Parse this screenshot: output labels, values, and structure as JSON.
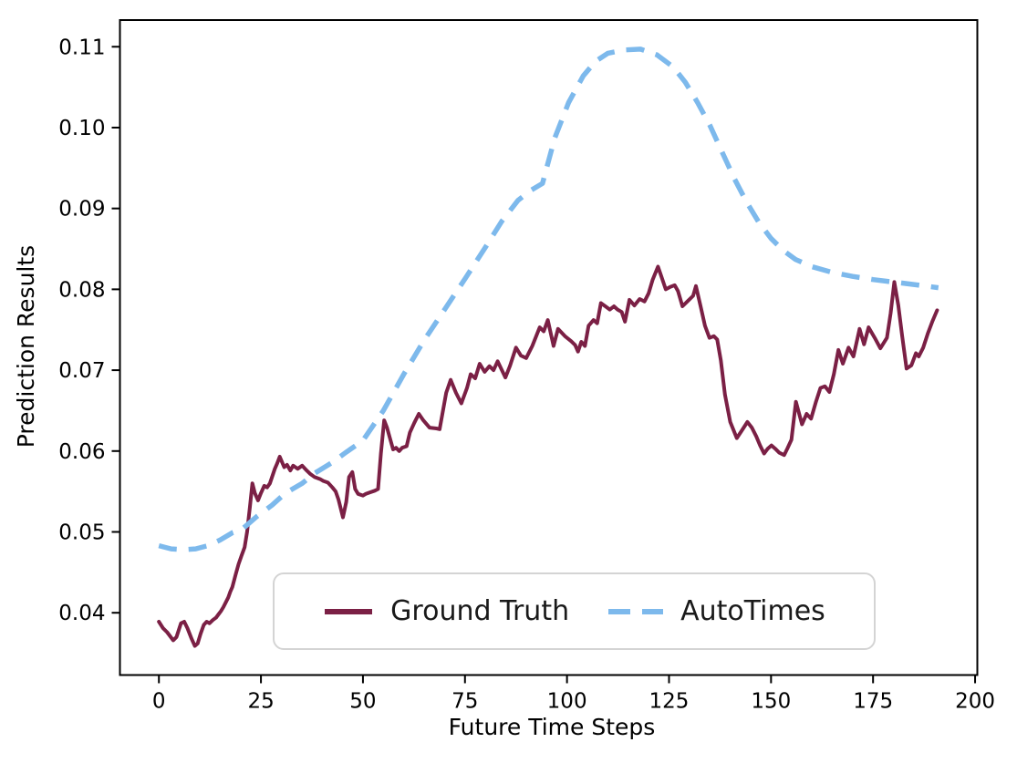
{
  "chart_data": {
    "type": "line",
    "title": "",
    "xlabel": "Future Time Steps",
    "ylabel": "Prediction Results",
    "xlim": [
      -9.55,
      200.55
    ],
    "ylim": [
      0.0323,
      0.1133
    ],
    "grid": false,
    "legend_position": "lower center",
    "x_ticks": [
      {
        "v": 0,
        "label": "0"
      },
      {
        "v": 25,
        "label": "25"
      },
      {
        "v": 50,
        "label": "50"
      },
      {
        "v": 75,
        "label": "75"
      },
      {
        "v": 100,
        "label": "100"
      },
      {
        "v": 125,
        "label": "125"
      },
      {
        "v": 150,
        "label": "150"
      },
      {
        "v": 175,
        "label": "175"
      },
      {
        "v": 200,
        "label": "200"
      }
    ],
    "y_ticks": [
      {
        "v": 0.04,
        "label": "0.04"
      },
      {
        "v": 0.05,
        "label": "0.05"
      },
      {
        "v": 0.06,
        "label": "0.06"
      },
      {
        "v": 0.07,
        "label": "0.07"
      },
      {
        "v": 0.08,
        "label": "0.08"
      },
      {
        "v": 0.09,
        "label": "0.09"
      },
      {
        "v": 0.1,
        "label": "0.10"
      },
      {
        "v": 0.11,
        "label": "0.11"
      }
    ],
    "series": [
      {
        "name": "Ground Truth",
        "color": "#7b2045",
        "line_style": "solid",
        "points": [
          [
            0,
            0.0389
          ],
          [
            1,
            0.0381
          ],
          [
            2,
            0.0376
          ],
          [
            3.5,
            0.0366
          ],
          [
            4.3,
            0.037
          ],
          [
            5.4,
            0.0387
          ],
          [
            6.2,
            0.0389
          ],
          [
            7,
            0.0381
          ],
          [
            8,
            0.0368
          ],
          [
            8.8,
            0.0359
          ],
          [
            9.5,
            0.0362
          ],
          [
            10.2,
            0.0374
          ],
          [
            11,
            0.0385
          ],
          [
            11.7,
            0.0389
          ],
          [
            12.4,
            0.0387
          ],
          [
            13.2,
            0.0391
          ],
          [
            14,
            0.0394
          ],
          [
            14.6,
            0.0398
          ],
          [
            15.2,
            0.0402
          ],
          [
            15.8,
            0.0407
          ],
          [
            16.4,
            0.0413
          ],
          [
            17,
            0.0419
          ],
          [
            17.5,
            0.0426
          ],
          [
            18,
            0.0432
          ],
          [
            18.8,
            0.0447
          ],
          [
            19.5,
            0.046
          ],
          [
            20.2,
            0.047
          ],
          [
            21,
            0.0481
          ],
          [
            21.6,
            0.05
          ],
          [
            22.3,
            0.0531
          ],
          [
            22.9,
            0.056
          ],
          [
            23.5,
            0.0548
          ],
          [
            24.3,
            0.0539
          ],
          [
            25,
            0.0548
          ],
          [
            25.8,
            0.0557
          ],
          [
            26.5,
            0.0555
          ],
          [
            27.2,
            0.056
          ],
          [
            28.4,
            0.0578
          ],
          [
            29,
            0.0585
          ],
          [
            29.6,
            0.0593
          ],
          [
            30.7,
            0.058
          ],
          [
            31.4,
            0.0583
          ],
          [
            32.2,
            0.0576
          ],
          [
            32.9,
            0.0582
          ],
          [
            34,
            0.0578
          ],
          [
            35.1,
            0.0582
          ],
          [
            36.2,
            0.0576
          ],
          [
            37,
            0.0572
          ],
          [
            38.1,
            0.0568
          ],
          [
            39.6,
            0.0565
          ],
          [
            40.3,
            0.0563
          ],
          [
            41.4,
            0.0561
          ],
          [
            42.5,
            0.0555
          ],
          [
            43.3,
            0.055
          ],
          [
            44,
            0.054
          ],
          [
            45.1,
            0.0518
          ],
          [
            45.9,
            0.0537
          ],
          [
            46.6,
            0.0568
          ],
          [
            47.4,
            0.0574
          ],
          [
            48.1,
            0.0553
          ],
          [
            48.8,
            0.0547
          ],
          [
            50,
            0.0545
          ],
          [
            50.7,
            0.0547
          ],
          [
            51.8,
            0.0549
          ],
          [
            52.9,
            0.0551
          ],
          [
            53.7,
            0.0553
          ],
          [
            54.4,
            0.0597
          ],
          [
            55.2,
            0.0638
          ],
          [
            55.9,
            0.0629
          ],
          [
            56.6,
            0.0616
          ],
          [
            57.4,
            0.0602
          ],
          [
            58.1,
            0.0604
          ],
          [
            58.9,
            0.06
          ],
          [
            59.6,
            0.0604
          ],
          [
            60.7,
            0.0606
          ],
          [
            61.5,
            0.0623
          ],
          [
            62.6,
            0.0635
          ],
          [
            63.7,
            0.0646
          ],
          [
            64.8,
            0.0638
          ],
          [
            66.3,
            0.0629
          ],
          [
            68,
            0.0628
          ],
          [
            68.8,
            0.0627
          ],
          [
            70.4,
            0.0672
          ],
          [
            71.5,
            0.0688
          ],
          [
            72.8,
            0.0672
          ],
          [
            74.1,
            0.0659
          ],
          [
            75.5,
            0.0678
          ],
          [
            76.4,
            0.0695
          ],
          [
            77.5,
            0.069
          ],
          [
            78.6,
            0.0708
          ],
          [
            79.8,
            0.0698
          ],
          [
            81,
            0.0705
          ],
          [
            82,
            0.07
          ],
          [
            83,
            0.0711
          ],
          [
            84.9,
            0.0691
          ],
          [
            86,
            0.0705
          ],
          [
            87.5,
            0.0728
          ],
          [
            88.7,
            0.0718
          ],
          [
            90,
            0.0715
          ],
          [
            91.5,
            0.073
          ],
          [
            93.3,
            0.0753
          ],
          [
            94.3,
            0.0748
          ],
          [
            95.3,
            0.0762
          ],
          [
            96.7,
            0.073
          ],
          [
            97.8,
            0.0751
          ],
          [
            99.5,
            0.0742
          ],
          [
            101,
            0.0736
          ],
          [
            102,
            0.0731
          ],
          [
            102.7,
            0.0723
          ],
          [
            103.5,
            0.0735
          ],
          [
            104.4,
            0.073
          ],
          [
            105.3,
            0.0755
          ],
          [
            106.5,
            0.0762
          ],
          [
            107.4,
            0.0758
          ],
          [
            108.3,
            0.0783
          ],
          [
            109.4,
            0.0779
          ],
          [
            110.5,
            0.0775
          ],
          [
            111.5,
            0.0779
          ],
          [
            112.4,
            0.0775
          ],
          [
            113.4,
            0.0772
          ],
          [
            114.2,
            0.076
          ],
          [
            115.3,
            0.0787
          ],
          [
            116.5,
            0.078
          ],
          [
            117.8,
            0.0788
          ],
          [
            119,
            0.0785
          ],
          [
            120,
            0.0795
          ],
          [
            121,
            0.0812
          ],
          [
            122.3,
            0.0828
          ],
          [
            123.2,
            0.0815
          ],
          [
            124.2,
            0.08
          ],
          [
            125.3,
            0.0803
          ],
          [
            126.4,
            0.0805
          ],
          [
            127.2,
            0.0798
          ],
          [
            128.3,
            0.0779
          ],
          [
            129.5,
            0.0785
          ],
          [
            130.9,
            0.0792
          ],
          [
            131.6,
            0.0804
          ],
          [
            132.7,
            0.078
          ],
          [
            133.8,
            0.0755
          ],
          [
            134.9,
            0.074
          ],
          [
            136,
            0.0742
          ],
          [
            136.8,
            0.0738
          ],
          [
            137.7,
            0.0712
          ],
          [
            138.7,
            0.067
          ],
          [
            140,
            0.0636
          ],
          [
            141.6,
            0.0616
          ],
          [
            142.8,
            0.0625
          ],
          [
            144.2,
            0.0636
          ],
          [
            145.3,
            0.0629
          ],
          [
            146.4,
            0.0618
          ],
          [
            147.3,
            0.0607
          ],
          [
            148.3,
            0.0597
          ],
          [
            149.2,
            0.0603
          ],
          [
            150.1,
            0.0607
          ],
          [
            151,
            0.0603
          ],
          [
            152,
            0.0598
          ],
          [
            153.2,
            0.0595
          ],
          [
            154,
            0.0603
          ],
          [
            155,
            0.0614
          ],
          [
            156.1,
            0.0661
          ],
          [
            157.6,
            0.0633
          ],
          [
            158.7,
            0.0646
          ],
          [
            159.8,
            0.064
          ],
          [
            161,
            0.0661
          ],
          [
            162.1,
            0.0678
          ],
          [
            163.2,
            0.068
          ],
          [
            164.3,
            0.0673
          ],
          [
            165.4,
            0.0695
          ],
          [
            166.5,
            0.0725
          ],
          [
            167.6,
            0.0708
          ],
          [
            169,
            0.0728
          ],
          [
            170.2,
            0.0717
          ],
          [
            171.7,
            0.0751
          ],
          [
            172.8,
            0.0732
          ],
          [
            173.9,
            0.0753
          ],
          [
            175.4,
            0.074
          ],
          [
            176.8,
            0.0727
          ],
          [
            178.4,
            0.074
          ],
          [
            179.3,
            0.077
          ],
          [
            180.2,
            0.0809
          ],
          [
            181.2,
            0.078
          ],
          [
            182.1,
            0.0743
          ],
          [
            183.2,
            0.0702
          ],
          [
            184.4,
            0.0706
          ],
          [
            185.5,
            0.0721
          ],
          [
            186.2,
            0.0717
          ],
          [
            187.3,
            0.0728
          ],
          [
            188.4,
            0.0745
          ],
          [
            189.5,
            0.076
          ],
          [
            190.7,
            0.0774
          ]
        ]
      },
      {
        "name": "AutoTimes",
        "color": "#7db9ec",
        "line_style": "dashed",
        "points": [
          [
            0,
            0.0483
          ],
          [
            3,
            0.0479
          ],
          [
            6,
            0.0478
          ],
          [
            9,
            0.0479
          ],
          [
            12,
            0.0483
          ],
          [
            15,
            0.049
          ],
          [
            18,
            0.0499
          ],
          [
            20.3,
            0.0503
          ],
          [
            24,
            0.0519
          ],
          [
            27.7,
            0.0533
          ],
          [
            31,
            0.0548
          ],
          [
            35.1,
            0.056
          ],
          [
            38,
            0.0572
          ],
          [
            42.5,
            0.0586
          ],
          [
            46,
            0.0599
          ],
          [
            50,
            0.0613
          ],
          [
            55,
            0.065
          ],
          [
            60,
            0.0695
          ],
          [
            65,
            0.0737
          ],
          [
            70,
            0.0775
          ],
          [
            75,
            0.0813
          ],
          [
            80,
            0.0852
          ],
          [
            84,
            0.0884
          ],
          [
            88,
            0.091
          ],
          [
            91,
            0.0922
          ],
          [
            94,
            0.0931
          ],
          [
            95,
            0.095
          ],
          [
            97,
            0.0987
          ],
          [
            100.4,
            0.1031
          ],
          [
            104,
            0.1064
          ],
          [
            107,
            0.1082
          ],
          [
            110,
            0.1092
          ],
          [
            114,
            0.1096
          ],
          [
            118,
            0.1097
          ],
          [
            122,
            0.109
          ],
          [
            126,
            0.1075
          ],
          [
            129,
            0.1056
          ],
          [
            132,
            0.1031
          ],
          [
            135,
            0.1003
          ],
          [
            138,
            0.097
          ],
          [
            141,
            0.0937
          ],
          [
            144,
            0.0908
          ],
          [
            147,
            0.0883
          ],
          [
            150,
            0.0863
          ],
          [
            153,
            0.0848
          ],
          [
            156,
            0.0837
          ],
          [
            160,
            0.0828
          ],
          [
            165,
            0.0821
          ],
          [
            170,
            0.0816
          ],
          [
            175,
            0.0812
          ],
          [
            180,
            0.0809
          ],
          [
            185,
            0.0806
          ],
          [
            191,
            0.0802
          ]
        ]
      }
    ]
  },
  "legend": {
    "items": [
      {
        "label": "Ground Truth"
      },
      {
        "label": "AutoTimes"
      }
    ]
  }
}
